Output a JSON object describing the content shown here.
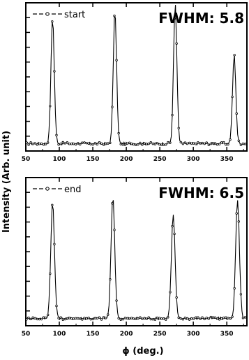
{
  "ylabel": "Intensity (Arb. unit)",
  "xlabel": "ϕ (deg.)",
  "chart_data": [
    {
      "type": "line",
      "legend_label": "start",
      "annotation": "FWHM: 5.8",
      "xlim": [
        50,
        380
      ],
      "x_ticks": [
        "50",
        "100",
        "150",
        "200",
        "250",
        "300",
        "350"
      ],
      "y_ticks": 10,
      "baseline": 0.05,
      "peaks": [
        {
          "center": 90,
          "height": 0.85,
          "fwhm": 5.8
        },
        {
          "center": 183,
          "height": 0.9,
          "fwhm": 5.8
        },
        {
          "center": 273,
          "height": 0.95,
          "fwhm": 5.8
        },
        {
          "center": 361,
          "height": 0.6,
          "fwhm": 5.8
        }
      ]
    },
    {
      "type": "line",
      "legend_label": "end",
      "annotation": "FWHM: 6.5",
      "xlim": [
        50,
        380
      ],
      "x_ticks": [
        "50",
        "100",
        "150",
        "200",
        "250",
        "300",
        "350"
      ],
      "y_ticks": 10,
      "baseline": 0.05,
      "peaks": [
        {
          "center": 90,
          "height": 0.78,
          "fwhm": 6.5
        },
        {
          "center": 180,
          "height": 0.82,
          "fwhm": 6.5
        },
        {
          "center": 270,
          "height": 0.7,
          "fwhm": 6.5
        },
        {
          "center": 366,
          "height": 0.8,
          "fwhm": 6.5
        }
      ]
    }
  ]
}
